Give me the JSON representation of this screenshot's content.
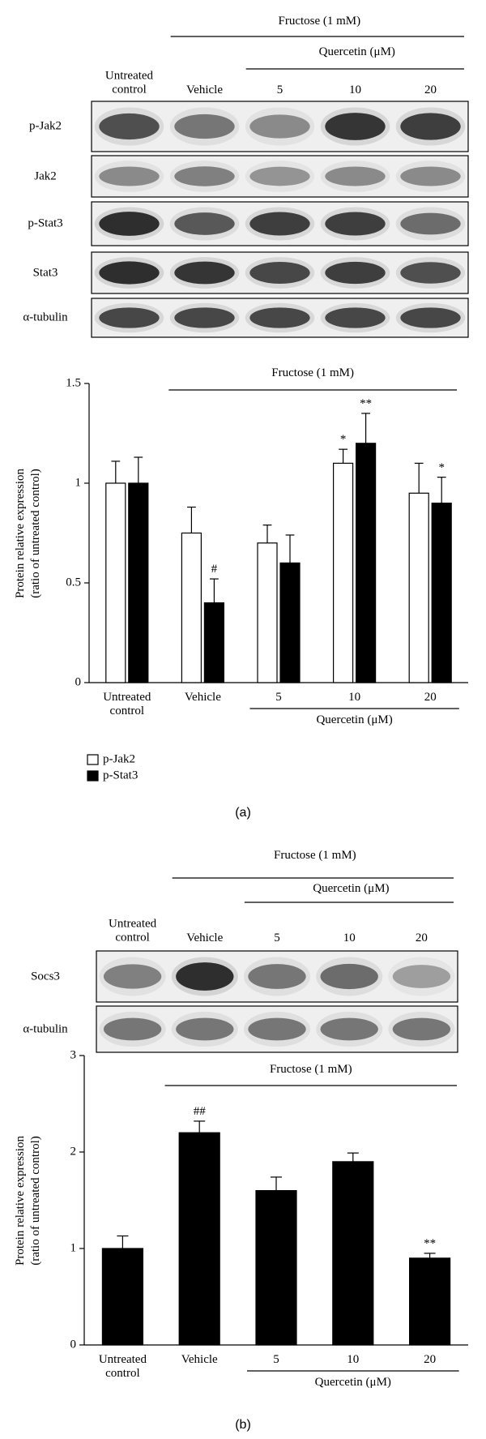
{
  "blots": [
    {
      "header": "Fructose (1 mM)",
      "subheader": "Quercetin (μM)",
      "columns": [
        "Untreated control",
        "Vehicle",
        "5",
        "10",
        "20"
      ],
      "rows": [
        "p-Jak2",
        "Jak2",
        "p-Stat3",
        "Stat3",
        "α-tubulin"
      ]
    },
    {
      "header": "Fructose (1 mM)",
      "subheader": "Quercetin (μM)",
      "columns": [
        "Untreated control",
        "Vehicle",
        "5",
        "10",
        "20"
      ],
      "rows": [
        "Socs3",
        "α-tubulin"
      ]
    }
  ],
  "chart_data": [
    {
      "type": "bar",
      "ylabel": [
        "Protein relative expression",
        "(ratio of untreated control)"
      ],
      "group_label": "Fructose (1 mM)",
      "subgroup_label": "Quercetin (μM)",
      "categories": [
        "Untreated control",
        "Vehicle",
        "5",
        "10",
        "20"
      ],
      "ylim": [
        0,
        1.5
      ],
      "yticks": [
        0,
        0.5,
        1,
        1.5
      ],
      "series": [
        {
          "name": "p-Jak2",
          "color": "#ffffff",
          "values": [
            1,
            0.75,
            0.7,
            1.1,
            0.95
          ],
          "errors": [
            0.11,
            0.13,
            0.09,
            0.07,
            0.15
          ],
          "annotations": [
            null,
            null,
            null,
            "*",
            null
          ]
        },
        {
          "name": "p-Stat3",
          "color": "#000000",
          "values": [
            1,
            0.4,
            0.6,
            1.2,
            0.9
          ],
          "errors": [
            0.13,
            0.12,
            0.14,
            0.15,
            0.13
          ],
          "annotations": [
            null,
            "#",
            null,
            "**",
            "*"
          ]
        }
      ]
    },
    {
      "type": "bar",
      "ylabel": [
        "Protein relative expression",
        "(ratio of untreated control)"
      ],
      "group_label": "Fructose (1 mM)",
      "subgroup_label": "Quercetin (μM)",
      "categories": [
        "Untreated control",
        "Vehicle",
        "5",
        "10",
        "20"
      ],
      "ylim": [
        0,
        3
      ],
      "yticks": [
        0,
        1,
        2,
        3
      ],
      "color": "#000000",
      "values": [
        1,
        2.2,
        1.6,
        1.9,
        0.9
      ],
      "errors": [
        0.13,
        0.12,
        0.14,
        0.09,
        0.05
      ],
      "annotations": [
        null,
        "##",
        null,
        null,
        "**"
      ]
    }
  ],
  "panel_labels": [
    "(a)",
    "(b)"
  ]
}
